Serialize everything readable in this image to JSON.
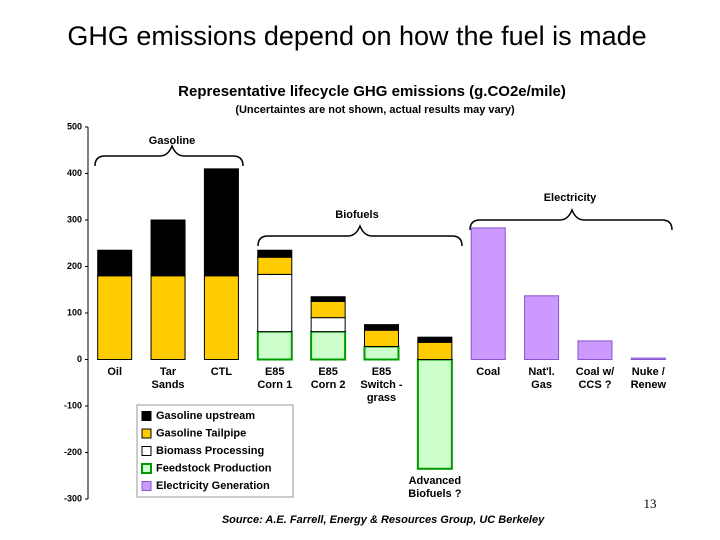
{
  "slide_title": "GHG emissions depend on how the fuel is made",
  "chart_data": {
    "type": "bar",
    "stacked": true,
    "title": "Representative lifecycle GHG emissions (g.CO2e/mile)",
    "subtitle": "(Uncertaintes are not shown, actual results may vary)",
    "categories": [
      "Oil",
      "Tar\nSands",
      "CTL",
      "E85\nCorn 1",
      "E85\nCorn 2",
      "E85\nSwitch -\ngrass",
      "Advanced\nBiofuels ?",
      "Coal",
      "Nat'l.\nGas",
      "Coal w/\nCCS ?",
      "Nuke /\nRenew"
    ],
    "series": [
      {
        "name": "Gasoline upstream",
        "color": "#000000",
        "values": [
          55,
          120,
          230,
          15,
          10,
          12,
          11,
          0,
          0,
          0,
          0
        ]
      },
      {
        "name": "Gasoline Tailpipe",
        "color": "#ffcc00",
        "values": [
          180,
          180,
          180,
          37,
          35,
          35,
          37,
          0,
          0,
          0,
          0
        ]
      },
      {
        "name": "Biomass Processing",
        "color": "#ffffff",
        "values": [
          0,
          0,
          0,
          123,
          30,
          0,
          0,
          0,
          0,
          0,
          0
        ]
      },
      {
        "name": "Feedstock Production",
        "color": "#ccffcc",
        "values": [
          0,
          0,
          0,
          60,
          60,
          28,
          -235,
          0,
          0,
          0,
          0
        ]
      },
      {
        "name": "Electricity Generation",
        "color": "#cc99ff",
        "values": [
          0,
          0,
          0,
          0,
          0,
          0,
          0,
          283,
          137,
          40,
          3
        ]
      }
    ],
    "ylim": [
      -300,
      500
    ],
    "yticks": [
      -300,
      -200,
      -100,
      0,
      100,
      200,
      300,
      400,
      500
    ],
    "annotations": [
      "Gasoline",
      "Biofuels",
      "Electricity"
    ],
    "source": "Source: A.E. Farrell, Energy & Resources Group, UC Berkeley"
  },
  "page_number": "13"
}
